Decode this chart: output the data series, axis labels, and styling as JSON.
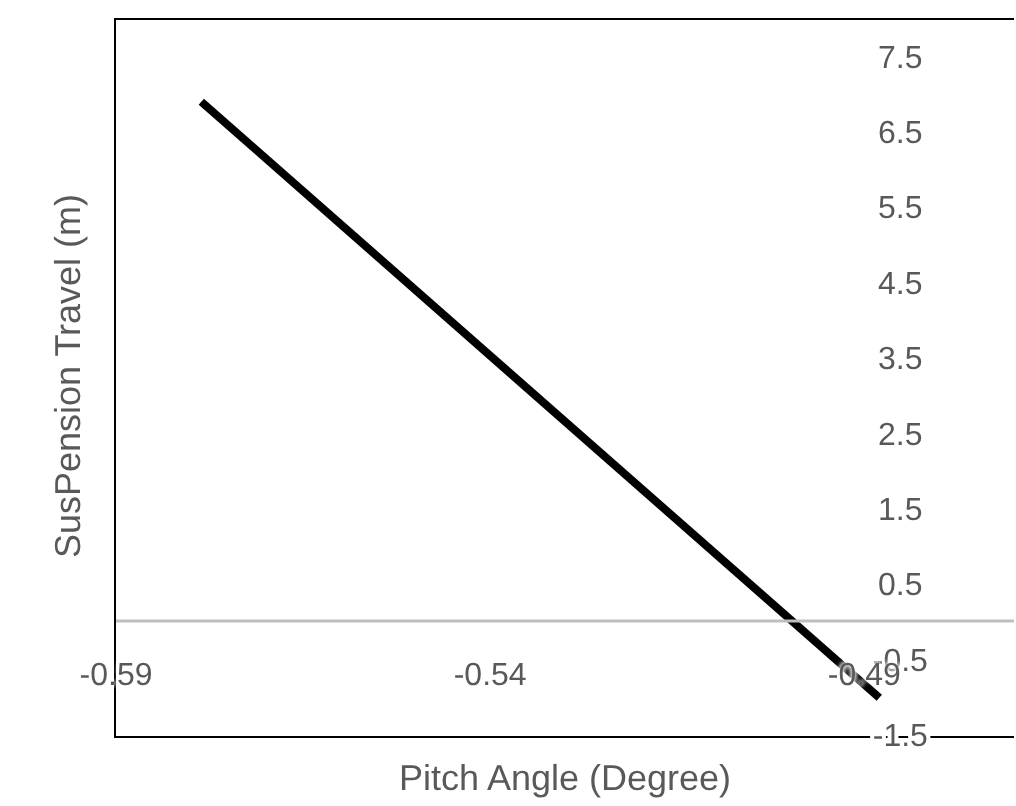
{
  "chart_data": {
    "type": "line",
    "xlabel": "Pitch Angle (Degree)",
    "ylabel": "SusPension Travel (m)",
    "x": [
      -0.5786,
      -0.488
    ],
    "series": [
      {
        "color": "#000000",
        "values": [
          6.89,
          -1.02
        ]
      }
    ],
    "xlim": [
      -0.59,
      -0.47
    ],
    "xticks": [
      -0.59,
      -0.54,
      -0.49
    ],
    "ylim": [
      -1.5,
      8
    ],
    "yticks": [
      7.5,
      6.5,
      5.5,
      4.5,
      3.5,
      2.5,
      1.5,
      0.5,
      -0.5,
      -1.5
    ],
    "marker": "none",
    "line_style": "solid"
  }
}
